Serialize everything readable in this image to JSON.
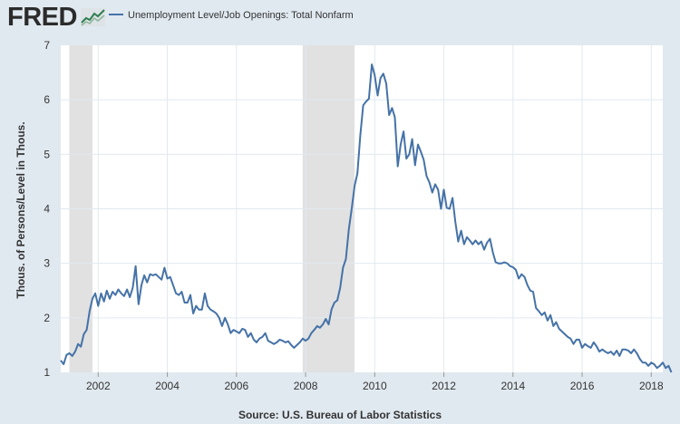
{
  "logo": {
    "text": "FRED",
    "icon": "line-chart-icon"
  },
  "colors": {
    "background": "#e1e9f0",
    "plot_background": "#ffffff",
    "line": "#4572a7",
    "recession": "#e1e1e1",
    "grid": "#e1e9f0"
  },
  "source": "Source: U.S. Bureau of Labor Statistics",
  "chart_data": {
    "type": "line",
    "title": "",
    "xlabel": "",
    "ylabel": "Thous. of Persons/Level in Thous.",
    "ylim": [
      1,
      7
    ],
    "xlim": [
      "2000-12",
      "2018-05"
    ],
    "yticks": [
      "1",
      "2",
      "3",
      "4",
      "5",
      "6",
      "7"
    ],
    "xticks": [
      "2002",
      "2004",
      "2006",
      "2008",
      "2010",
      "2012",
      "2014",
      "2016",
      "2018"
    ],
    "grid": true,
    "legend_position": "top-left",
    "recessions": [
      [
        "2001-03",
        "2001-11"
      ],
      [
        "2007-12",
        "2009-06"
      ]
    ],
    "series": [
      {
        "name": "Unemployment Level/Job Openings: Total Nonfarm",
        "color": "#4572a7",
        "start": "2000-12",
        "frequency": "monthly",
        "values": [
          1.22,
          1.15,
          1.32,
          1.35,
          1.3,
          1.38,
          1.52,
          1.47,
          1.7,
          1.78,
          2.12,
          2.35,
          2.45,
          2.22,
          2.45,
          2.3,
          2.5,
          2.35,
          2.48,
          2.42,
          2.52,
          2.45,
          2.4,
          2.52,
          2.38,
          2.55,
          2.95,
          2.25,
          2.6,
          2.78,
          2.65,
          2.8,
          2.78,
          2.8,
          2.75,
          2.7,
          2.92,
          2.72,
          2.75,
          2.6,
          2.45,
          2.42,
          2.48,
          2.28,
          2.28,
          2.42,
          2.08,
          2.22,
          2.15,
          2.15,
          2.45,
          2.22,
          2.15,
          2.12,
          2.08,
          2.0,
          1.85,
          2.0,
          1.88,
          1.72,
          1.78,
          1.75,
          1.72,
          1.8,
          1.78,
          1.65,
          1.72,
          1.6,
          1.55,
          1.62,
          1.65,
          1.72,
          1.58,
          1.55,
          1.52,
          1.55,
          1.6,
          1.58,
          1.55,
          1.57,
          1.5,
          1.45,
          1.5,
          1.55,
          1.62,
          1.58,
          1.62,
          1.72,
          1.78,
          1.85,
          1.82,
          1.88,
          1.98,
          1.88,
          2.15,
          2.28,
          2.32,
          2.55,
          2.92,
          3.08,
          3.62,
          4.0,
          4.42,
          4.65,
          5.35,
          5.9,
          5.97,
          6.02,
          6.65,
          6.45,
          6.08,
          6.4,
          6.48,
          6.3,
          5.72,
          5.85,
          5.68,
          4.78,
          5.18,
          5.42,
          4.92,
          5.0,
          5.28,
          4.8,
          5.18,
          5.05,
          4.9,
          4.6,
          4.48,
          4.3,
          4.45,
          4.35,
          4.0,
          4.35,
          4.02,
          4.0,
          4.2,
          3.75,
          3.4,
          3.6,
          3.35,
          3.48,
          3.42,
          3.35,
          3.42,
          3.35,
          3.4,
          3.25,
          3.38,
          3.45,
          3.2,
          3.02,
          3.0,
          3.0,
          3.02,
          3.0,
          2.95,
          2.93,
          2.88,
          2.72,
          2.8,
          2.75,
          2.6,
          2.5,
          2.48,
          2.18,
          2.12,
          2.05,
          2.1,
          1.95,
          2.05,
          1.85,
          1.92,
          1.8,
          1.75,
          1.7,
          1.65,
          1.62,
          1.52,
          1.6,
          1.6,
          1.45,
          1.52,
          1.48,
          1.45,
          1.55,
          1.48,
          1.38,
          1.42,
          1.38,
          1.35,
          1.38,
          1.32,
          1.4,
          1.3,
          1.42,
          1.42,
          1.4,
          1.35,
          1.42,
          1.35,
          1.25,
          1.18,
          1.18,
          1.12,
          1.18,
          1.15,
          1.08,
          1.12,
          1.18,
          1.08,
          1.12,
          1.0
        ]
      }
    ]
  }
}
